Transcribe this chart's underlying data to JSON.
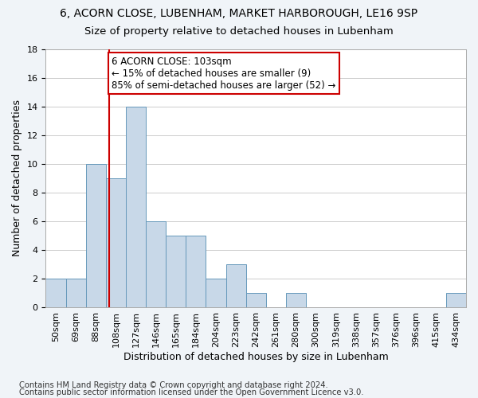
{
  "title1": "6, ACORN CLOSE, LUBENHAM, MARKET HARBOROUGH, LE16 9SP",
  "title2": "Size of property relative to detached houses in Lubenham",
  "xlabel": "Distribution of detached houses by size in Lubenham",
  "ylabel": "Number of detached properties",
  "footer1": "Contains HM Land Registry data © Crown copyright and database right 2024.",
  "footer2": "Contains public sector information licensed under the Open Government Licence v3.0.",
  "bin_labels": [
    "50sqm",
    "69sqm",
    "88sqm",
    "108sqm",
    "127sqm",
    "146sqm",
    "165sqm",
    "184sqm",
    "204sqm",
    "223sqm",
    "242sqm",
    "261sqm",
    "280sqm",
    "300sqm",
    "319sqm",
    "338sqm",
    "357sqm",
    "376sqm",
    "396sqm",
    "415sqm",
    "434sqm"
  ],
  "bar_values": [
    2,
    2,
    10,
    9,
    14,
    6,
    5,
    5,
    2,
    3,
    1,
    0,
    1,
    0,
    0,
    0,
    0,
    0,
    0,
    0,
    1
  ],
  "bar_color": "#c8d8e8",
  "bar_edge_color": "#6699bb",
  "vline_bin_index": 2.65,
  "vline_color": "#cc0000",
  "annotation_text": "6 ACORN CLOSE: 103sqm\n← 15% of detached houses are smaller (9)\n85% of semi-detached houses are larger (52) →",
  "annotation_box_color": "#ffffff",
  "annotation_box_edge_color": "#cc0000",
  "ylim": [
    0,
    18
  ],
  "yticks": [
    0,
    2,
    4,
    6,
    8,
    10,
    12,
    14,
    16,
    18
  ],
  "bg_color": "#f0f4f8",
  "plot_bg_color": "#ffffff",
  "grid_color": "#cccccc",
  "title1_fontsize": 10,
  "title2_fontsize": 9.5,
  "xlabel_fontsize": 9,
  "ylabel_fontsize": 9,
  "tick_fontsize": 8,
  "annotation_fontsize": 8.5,
  "footer_fontsize": 7.2
}
